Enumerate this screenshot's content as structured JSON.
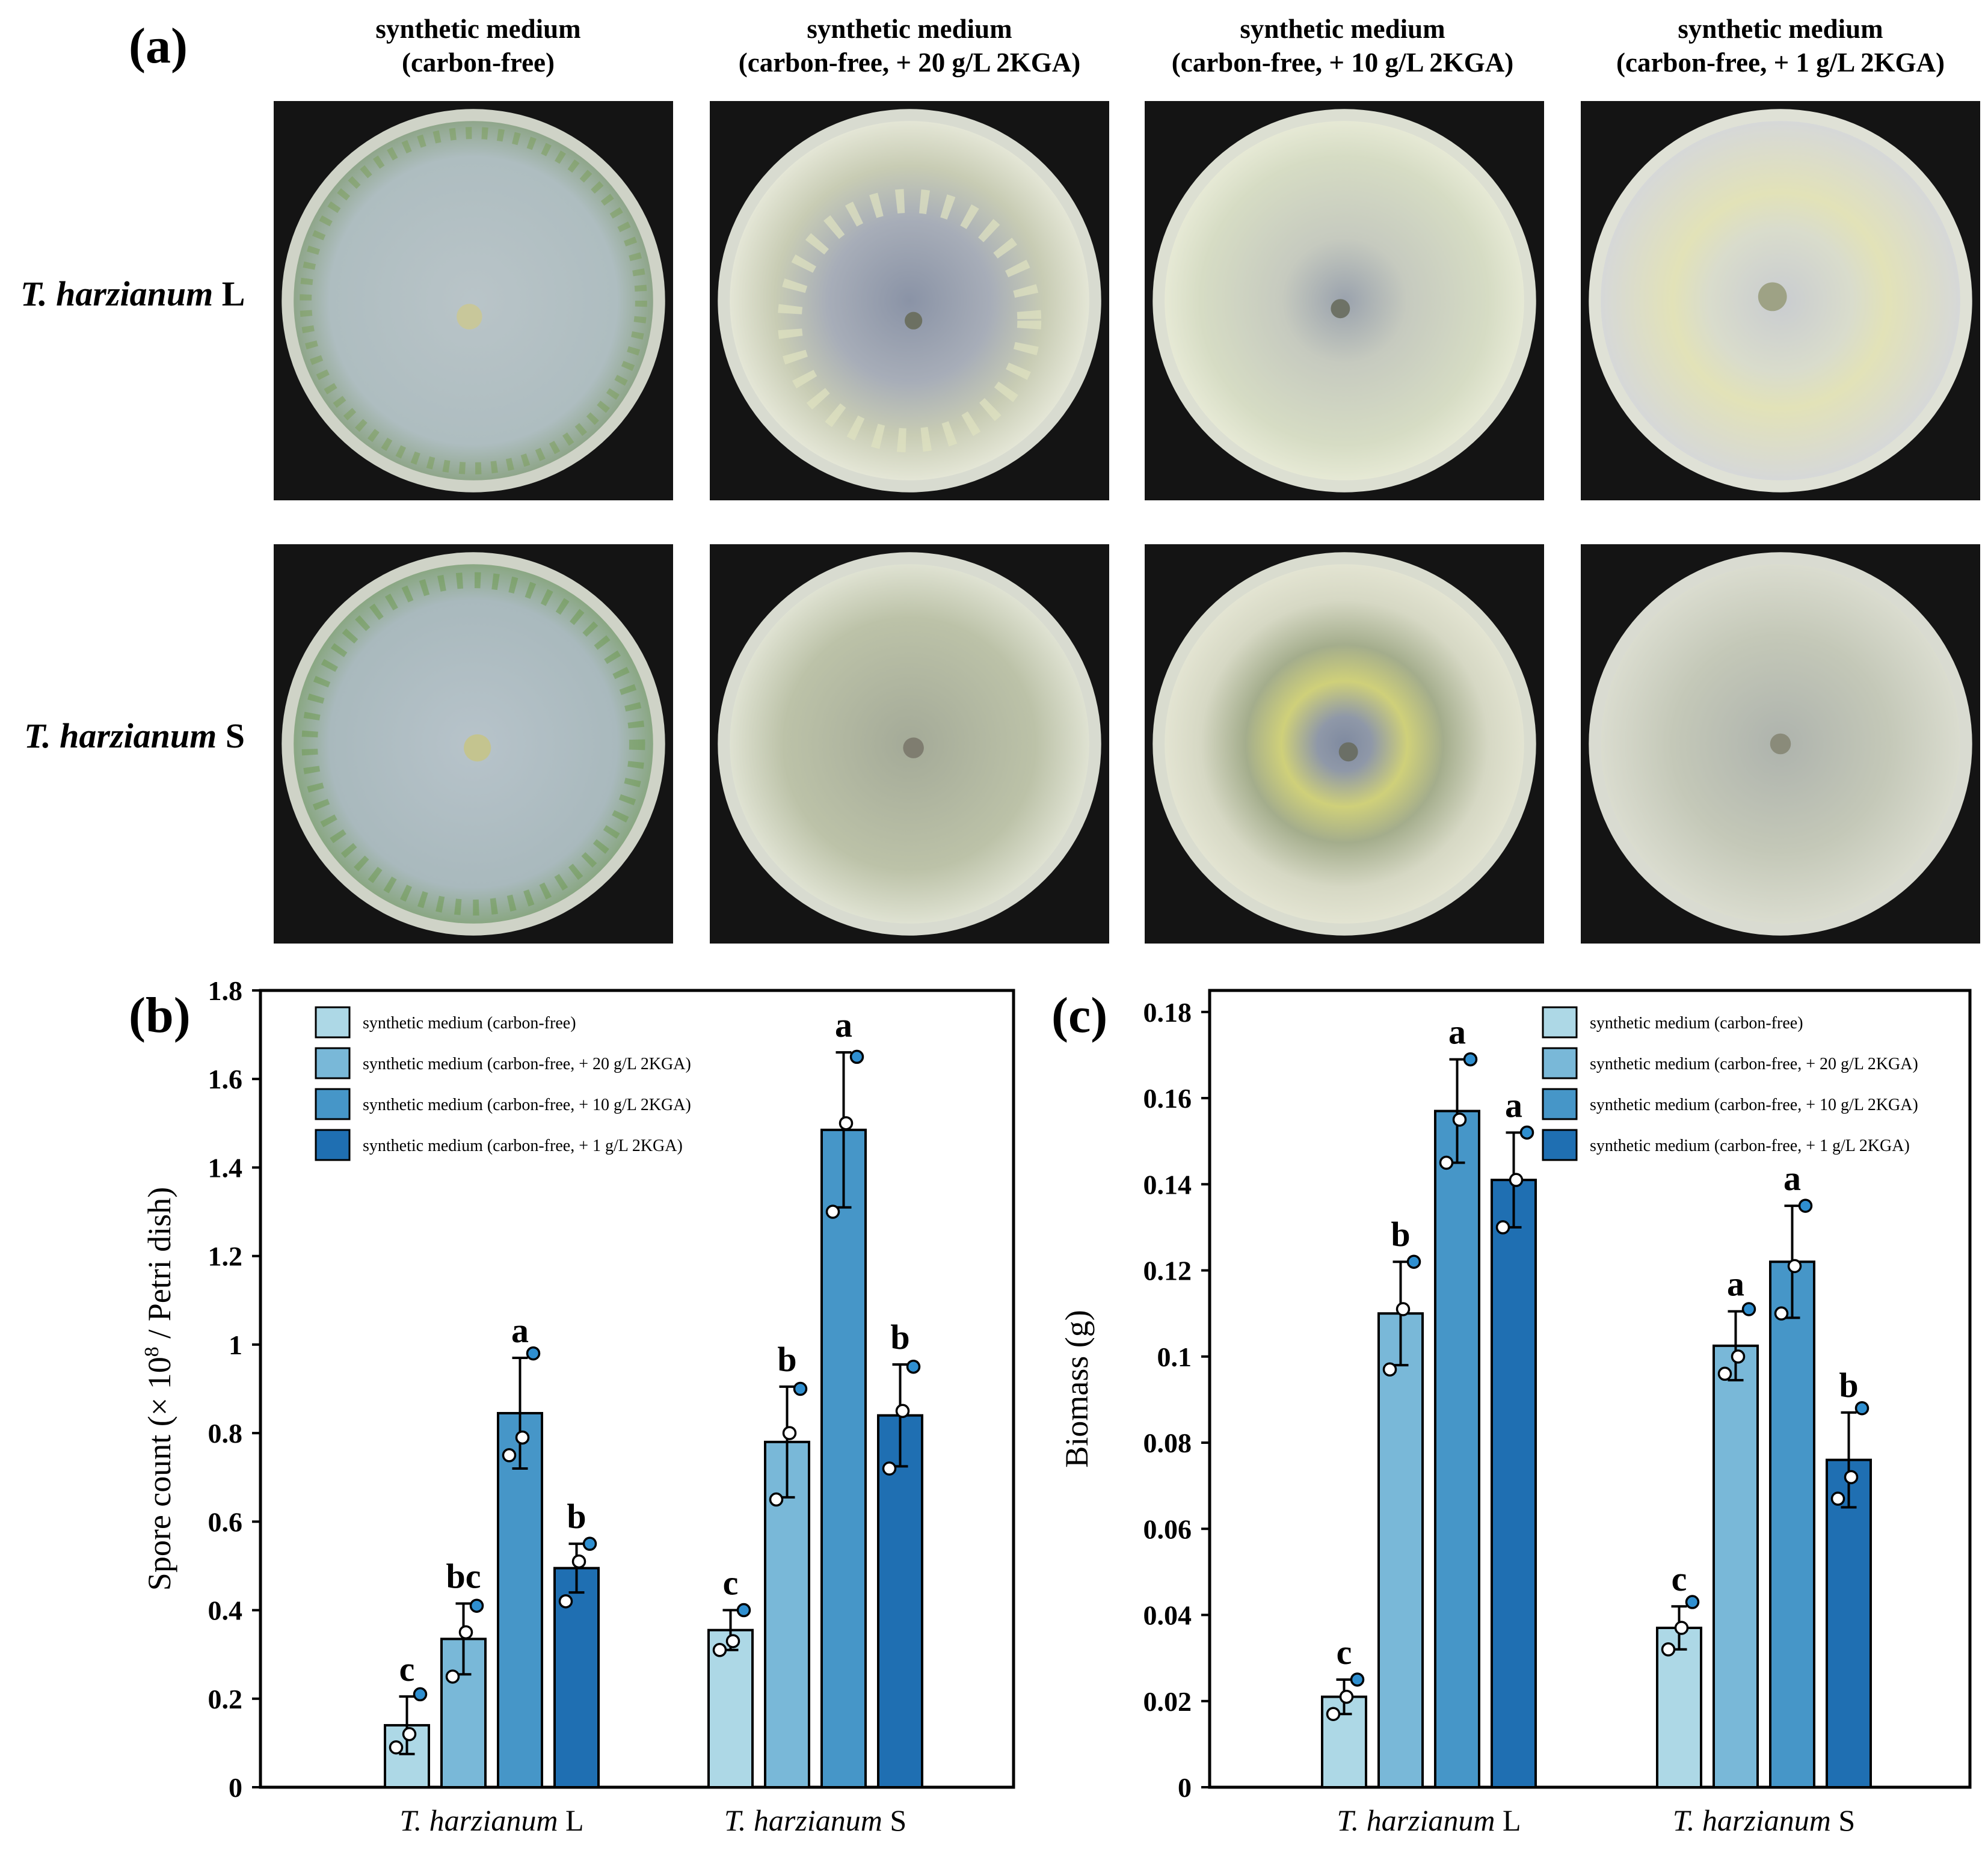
{
  "panel_a": {
    "label": "(a)",
    "columns": [
      {
        "line1": "synthetic medium",
        "line2": "(carbon-free)"
      },
      {
        "line1": "synthetic medium",
        "line2": "(carbon-free, + 20 g/L 2KGA)"
      },
      {
        "line1": "synthetic medium",
        "line2": "(carbon-free, + 10 g/L 2KGA)"
      },
      {
        "line1": "synthetic medium",
        "line2": "(carbon-free, + 1 g/L 2KGA)"
      }
    ],
    "rows": [
      {
        "species": "T. harzianum",
        "strain": "L"
      },
      {
        "species": "T. harzianum",
        "strain": "S"
      }
    ]
  },
  "colors": {
    "series": [
      "#add8e6",
      "#79b8d8",
      "#4696c8",
      "#1f6fb2"
    ],
    "dots": "#2f8fd0",
    "background": "#ffffff"
  },
  "chart_data": [
    {
      "panel": "(b)",
      "type": "bar",
      "categories": [
        "T. harzianum L",
        "T. harzianum S"
      ],
      "category_species": "T. harzianum",
      "category_strain": [
        "L",
        "S"
      ],
      "ylabel_main": "Spore count (× 10",
      "ylabel_exp": "8",
      "ylabel_tail": " / Petri dish)",
      "ylim": [
        0,
        1.8
      ],
      "yticks": [
        0,
        0.2,
        0.4,
        0.6,
        0.8,
        1,
        1.2,
        1.4,
        1.6,
        1.8
      ],
      "ytick_labels": [
        "0",
        "0.2",
        "0.4",
        "0.6",
        "0.8",
        "1",
        "1.2",
        "1.4",
        "1.6",
        "1.8"
      ],
      "legend_position": "top-left",
      "series": [
        {
          "name": "synthetic medium (carbon-free)",
          "values": [
            0.14,
            0.355
          ],
          "err": [
            0.065,
            0.045
          ],
          "letters": [
            "c",
            "c"
          ],
          "points": [
            [
              0.09,
              0.12,
              0.21
            ],
            [
              0.31,
              0.33,
              0.4
            ]
          ]
        },
        {
          "name": "synthetic medium (carbon-free, + 20 g/L 2KGA)",
          "values": [
            0.335,
            0.78
          ],
          "err": [
            0.08,
            0.125
          ],
          "letters": [
            "bc",
            "b"
          ],
          "points": [
            [
              0.25,
              0.35,
              0.41
            ],
            [
              0.65,
              0.8,
              0.9
            ]
          ]
        },
        {
          "name": "synthetic medium (carbon-free, + 10 g/L  2KGA)",
          "values": [
            0.845,
            1.485
          ],
          "err": [
            0.125,
            0.175
          ],
          "letters": [
            "a",
            "a"
          ],
          "points": [
            [
              0.75,
              0.79,
              0.98
            ],
            [
              1.3,
              1.5,
              1.65
            ]
          ]
        },
        {
          "name": "synthetic medium (carbon-free, + 1 g/L  2KGA)",
          "values": [
            0.495,
            0.84
          ],
          "err": [
            0.055,
            0.115
          ],
          "letters": [
            "b",
            "b"
          ],
          "points": [
            [
              0.42,
              0.51,
              0.55
            ],
            [
              0.72,
              0.85,
              0.95
            ]
          ]
        }
      ]
    },
    {
      "panel": "(c)",
      "type": "bar",
      "categories": [
        "T. harzianum L",
        "T. harzianum S"
      ],
      "category_species": "T. harzianum",
      "category_strain": [
        "L",
        "S"
      ],
      "ylabel_main": "Biomass (g)",
      "ylabel_exp": "",
      "ylabel_tail": "",
      "ylim": [
        0,
        0.185
      ],
      "yticks": [
        0,
        0.02,
        0.04,
        0.06,
        0.08,
        0.1,
        0.12,
        0.14,
        0.16,
        0.18
      ],
      "ytick_labels": [
        "0",
        "0.02",
        "0.04",
        "0.06",
        "0.08",
        "0.1",
        "0.12",
        "0.14",
        "0.16",
        "0.18"
      ],
      "legend_position": "top-right",
      "series": [
        {
          "name": "synthetic medium (carbon-free)",
          "values": [
            0.021,
            0.037
          ],
          "err": [
            0.004,
            0.005
          ],
          "letters": [
            "c",
            "c"
          ],
          "points": [
            [
              0.017,
              0.021,
              0.025
            ],
            [
              0.032,
              0.037,
              0.043
            ]
          ]
        },
        {
          "name": "synthetic medium (carbon-free, + 20 g/L 2KGA)",
          "values": [
            0.11,
            0.1025
          ],
          "err": [
            0.012,
            0.008
          ],
          "letters": [
            "b",
            "a"
          ],
          "points": [
            [
              0.097,
              0.111,
              0.122
            ],
            [
              0.096,
              0.1,
              0.111
            ]
          ]
        },
        {
          "name": "synthetic medium (carbon-free, + 10 g/L  2KGA)",
          "values": [
            0.157,
            0.122
          ],
          "err": [
            0.012,
            0.013
          ],
          "letters": [
            "a",
            "a"
          ],
          "points": [
            [
              0.145,
              0.155,
              0.169
            ],
            [
              0.11,
              0.121,
              0.135
            ]
          ]
        },
        {
          "name": "synthetic medium (carbon-free, + 1 g/L  2KGA)",
          "values": [
            0.141,
            0.076
          ],
          "err": [
            0.011,
            0.011
          ],
          "letters": [
            "a",
            "b"
          ],
          "points": [
            [
              0.13,
              0.141,
              0.152
            ],
            [
              0.067,
              0.072,
              0.088
            ]
          ]
        }
      ]
    }
  ]
}
